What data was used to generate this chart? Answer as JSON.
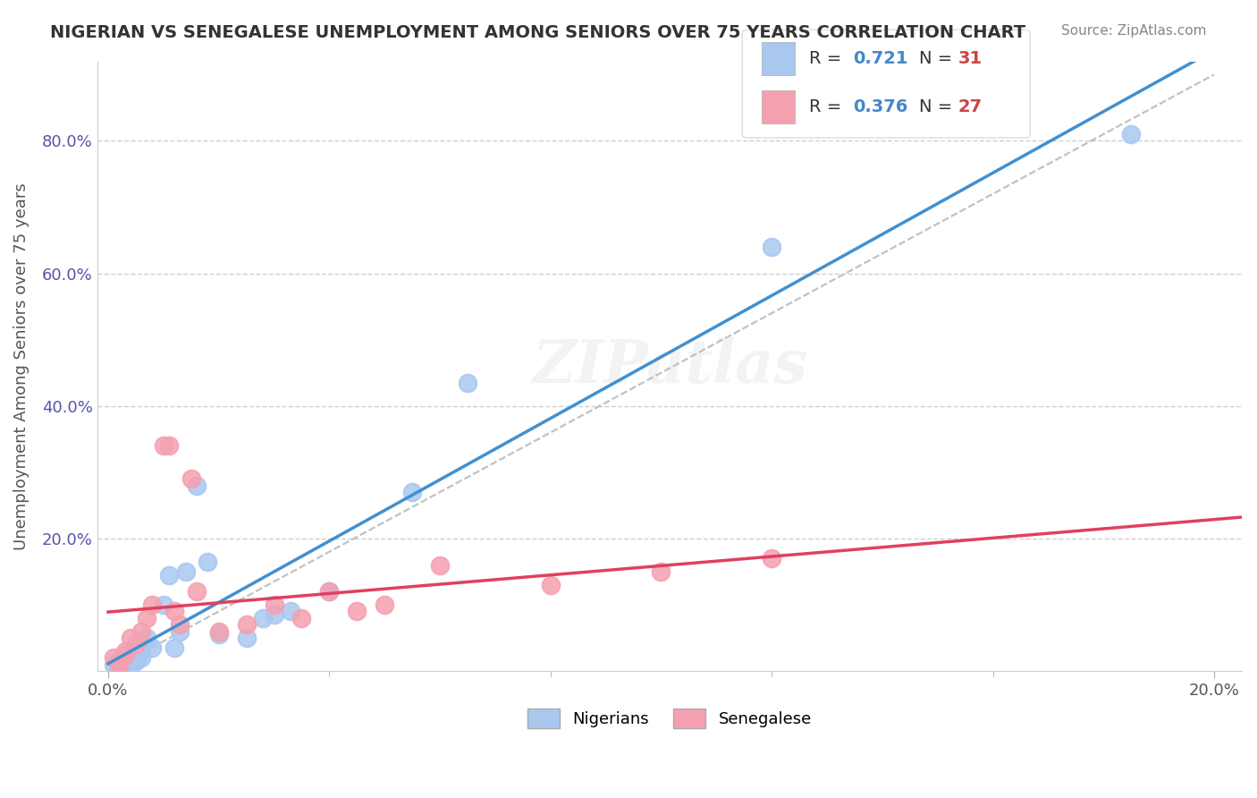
{
  "title": "NIGERIAN VS SENEGALESE UNEMPLOYMENT AMONG SENIORS OVER 75 YEARS CORRELATION CHART",
  "source": "Source: ZipAtlas.com",
  "xlabel": "",
  "ylabel": "Unemployment Among Seniors over 75 years",
  "xlim": [
    0.0,
    0.2
  ],
  "ylim": [
    0.0,
    0.9
  ],
  "xticks": [
    0.0,
    0.04,
    0.08,
    0.12,
    0.16,
    0.2
  ],
  "yticks": [
    0.0,
    0.2,
    0.4,
    0.6,
    0.8
  ],
  "ytick_labels": [
    "",
    "20.0%",
    "40.0%",
    "60.0%",
    "80.0%"
  ],
  "xtick_labels": [
    "0.0%",
    "",
    "",
    "",
    "",
    "20.0%"
  ],
  "legend_r1": "R = 0.721",
  "legend_n1": "N = 31",
  "legend_r2": "R = 0.376",
  "legend_n2": "N = 27",
  "nigerian_color": "#a8c8f0",
  "senegalese_color": "#f5a0b0",
  "nigerian_line_color": "#4090d0",
  "senegalese_line_color": "#e0406080",
  "watermark": "ZIPatlas",
  "background_color": "#ffffff",
  "nigerian_x": [
    0.001,
    0.002,
    0.002,
    0.003,
    0.003,
    0.004,
    0.004,
    0.004,
    0.005,
    0.005,
    0.006,
    0.006,
    0.007,
    0.008,
    0.01,
    0.011,
    0.012,
    0.013,
    0.014,
    0.016,
    0.018,
    0.02,
    0.025,
    0.028,
    0.03,
    0.033,
    0.04,
    0.055,
    0.065,
    0.12,
    0.185
  ],
  "nigerian_y": [
    0.01,
    0.005,
    0.008,
    0.012,
    0.015,
    0.02,
    0.01,
    0.012,
    0.025,
    0.015,
    0.03,
    0.02,
    0.05,
    0.035,
    0.1,
    0.145,
    0.035,
    0.06,
    0.15,
    0.28,
    0.165,
    0.055,
    0.05,
    0.08,
    0.085,
    0.09,
    0.12,
    0.27,
    0.435,
    0.64,
    0.81
  ],
  "senegalese_x": [
    0.001,
    0.002,
    0.002,
    0.003,
    0.003,
    0.004,
    0.005,
    0.006,
    0.007,
    0.008,
    0.01,
    0.011,
    0.012,
    0.013,
    0.015,
    0.016,
    0.02,
    0.025,
    0.03,
    0.035,
    0.04,
    0.045,
    0.05,
    0.06,
    0.08,
    0.1,
    0.12
  ],
  "senegalese_y": [
    0.02,
    0.01,
    0.015,
    0.025,
    0.03,
    0.05,
    0.04,
    0.06,
    0.08,
    0.1,
    0.34,
    0.34,
    0.09,
    0.07,
    0.29,
    0.12,
    0.06,
    0.07,
    0.1,
    0.08,
    0.12,
    0.09,
    0.1,
    0.16,
    0.13,
    0.15,
    0.17
  ]
}
